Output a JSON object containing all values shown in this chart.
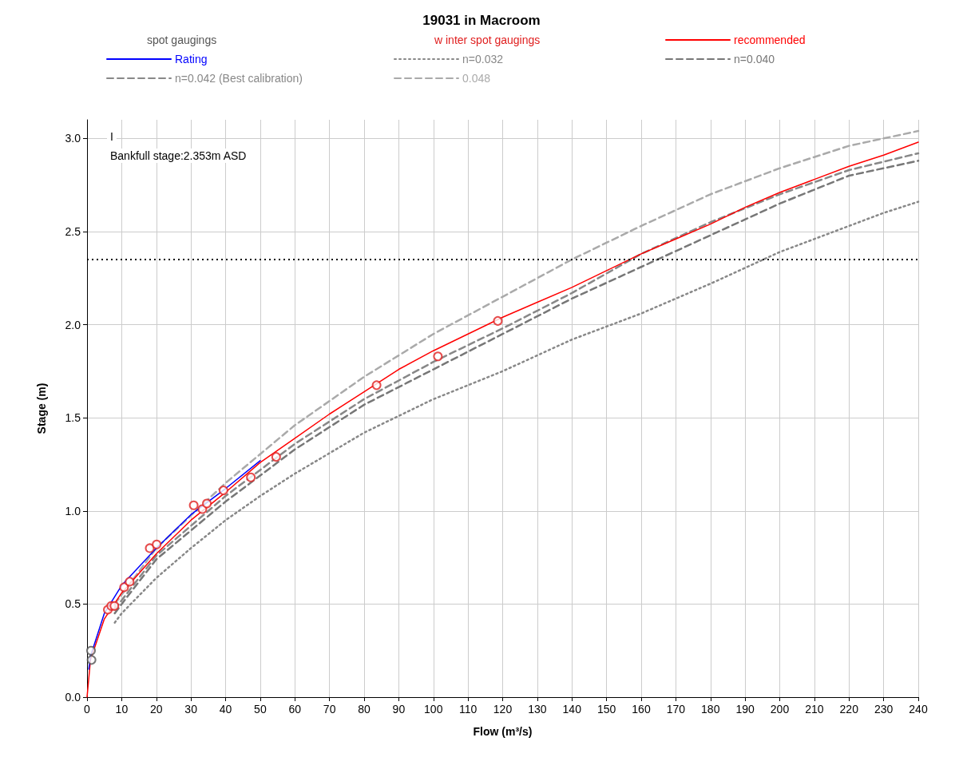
{
  "chart_data": {
    "type": "line",
    "title": "19031 in Macroom",
    "xlabel": "Flow (m³/s)",
    "ylabel": "Stage (m)",
    "annotations": [
      "I",
      "Bankfull stage:2.353m ASD"
    ],
    "xlim": [
      0,
      240
    ],
    "xticks": [
      0,
      10,
      20,
      30,
      40,
      50,
      60,
      70,
      80,
      90,
      100,
      110,
      120,
      130,
      140,
      150,
      160,
      170,
      180,
      190,
      200,
      210,
      220,
      230,
      240
    ],
    "ylim": [
      0,
      3.1
    ],
    "yticks": [
      {
        "value": 0,
        "label": "0.0"
      },
      {
        "value": 0.5,
        "label": "0.5"
      },
      {
        "value": 1,
        "label": "1.0"
      },
      {
        "value": 1.5,
        "label": "1.5"
      },
      {
        "value": 2,
        "label": "2.0"
      },
      {
        "value": 2.5,
        "label": "2.5"
      },
      {
        "value": 3,
        "label": "3.0"
      }
    ],
    "grid": true,
    "legend": "top",
    "marker": "none",
    "ref_lines": [
      {
        "axis": "y",
        "value": 2.353,
        "color": "#000000",
        "line_style": "dotted"
      }
    ],
    "series": [
      {
        "name": "spot gaugings",
        "type": "scatter",
        "marker": "circle",
        "color": "#555555",
        "x": [
          1.15,
          1.3
        ],
        "values": [
          0.25,
          0.2
        ]
      },
      {
        "name": "w inter spot gaugings",
        "type": "scatter",
        "marker": "circle",
        "color": "#e02020",
        "x": [
          6.0,
          7.0,
          7.9,
          10.7,
          12.3,
          18.1,
          20.1,
          30.8,
          33.3,
          34.6,
          39.4,
          47.3,
          54.6,
          83.6,
          101.3,
          118.6
        ],
        "values": [
          0.47,
          0.49,
          0.49,
          0.59,
          0.62,
          0.8,
          0.82,
          1.03,
          1.01,
          1.04,
          1.11,
          1.18,
          1.29,
          1.675,
          1.83,
          2.02
        ]
      },
      {
        "name": "recommended",
        "color": "#ff0000",
        "line_style": "solid",
        "x": [
          0,
          1,
          5,
          10,
          20,
          30,
          40,
          50,
          60,
          70,
          80,
          90,
          100,
          110,
          120,
          130,
          140,
          150,
          160,
          170,
          180,
          190,
          200,
          210,
          220,
          230,
          240
        ],
        "values": [
          0,
          0.2,
          0.42,
          0.56,
          0.77,
          0.95,
          1.1,
          1.26,
          1.39,
          1.52,
          1.64,
          1.76,
          1.86,
          1.95,
          2.04,
          2.12,
          2.2,
          2.29,
          2.38,
          2.46,
          2.54,
          2.63,
          2.71,
          2.78,
          2.85,
          2.91,
          2.98
        ]
      },
      {
        "name": "Rating",
        "color": "#0000ff",
        "line_style": "solid",
        "x": [
          0.5,
          1,
          5,
          10,
          20,
          30,
          40,
          50
        ],
        "values": [
          0.15,
          0.22,
          0.45,
          0.6,
          0.8,
          0.98,
          1.12,
          1.27
        ]
      },
      {
        "name": "n=0.032",
        "color": "#888888",
        "line_style": "dotted",
        "x": [
          8,
          10,
          20,
          30,
          40,
          50,
          60,
          80,
          100,
          120,
          140,
          160,
          180,
          200,
          220,
          230,
          240
        ],
        "values": [
          0.4,
          0.45,
          0.64,
          0.8,
          0.95,
          1.08,
          1.2,
          1.42,
          1.6,
          1.75,
          1.92,
          2.06,
          2.22,
          2.39,
          2.53,
          2.6,
          2.66
        ]
      },
      {
        "name": "n=0.040",
        "color": "#777777",
        "line_style": "dashed",
        "x": [
          8,
          10,
          20,
          40,
          60,
          80,
          100,
          120,
          140,
          160,
          180,
          200,
          220,
          240
        ],
        "values": [
          0.45,
          0.5,
          0.74,
          1.05,
          1.33,
          1.57,
          1.76,
          1.95,
          2.14,
          2.31,
          2.48,
          2.65,
          2.8,
          2.88
        ]
      },
      {
        "name": "n=0.042 (Best calibration)",
        "color": "#888888",
        "line_style": "dashed",
        "x": [
          8,
          10,
          20,
          40,
          60,
          80,
          100,
          120,
          140,
          160,
          180,
          200,
          220,
          240
        ],
        "values": [
          0.47,
          0.52,
          0.76,
          1.08,
          1.36,
          1.6,
          1.8,
          1.98,
          2.17,
          2.38,
          2.55,
          2.7,
          2.83,
          2.92
        ]
      },
      {
        "name": "0.048",
        "color": "#aaaaaa",
        "line_style": "dashed",
        "x": [
          8,
          10,
          20,
          40,
          60,
          80,
          100,
          120,
          140,
          160,
          180,
          200,
          220,
          240
        ],
        "values": [
          0.5,
          0.55,
          0.8,
          1.15,
          1.46,
          1.72,
          1.95,
          2.15,
          2.35,
          2.53,
          2.7,
          2.84,
          2.96,
          3.04
        ]
      }
    ]
  }
}
